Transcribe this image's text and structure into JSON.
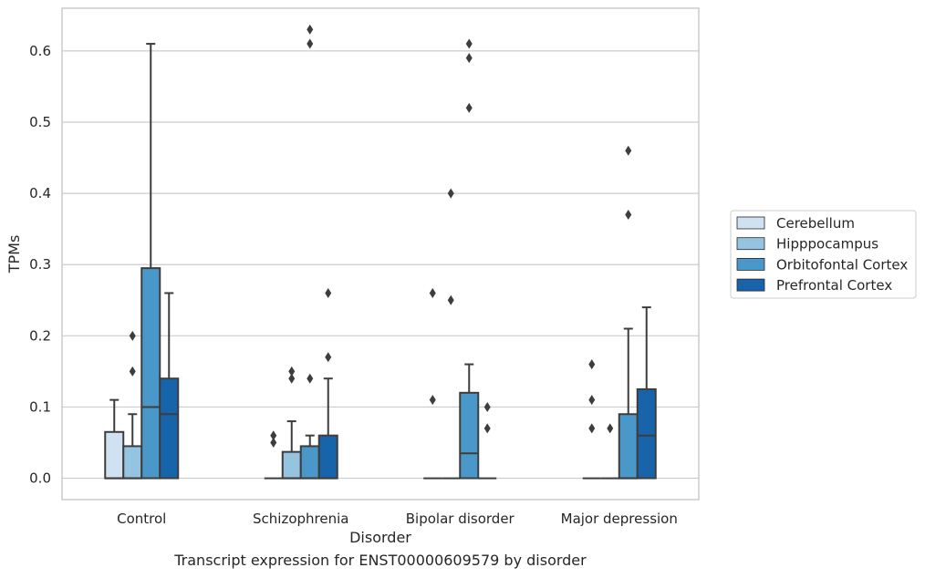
{
  "chart_data": {
    "type": "box",
    "xlabel": "Disorder",
    "ylabel": "TPMs",
    "ylim": [
      -0.03,
      0.66
    ],
    "yticks": [
      "0.0",
      "0.1",
      "0.2",
      "0.3",
      "0.4",
      "0.5",
      "0.6"
    ],
    "grid": "horizontal",
    "legend_position": "right",
    "categories": [
      "Control",
      "Schizophrenia",
      "Bipolar disorder",
      "Major depression"
    ],
    "series": [
      {
        "name": "Cerebellum",
        "color": "#d0e1f2",
        "boxes": [
          {
            "category": "Control",
            "q1": 0,
            "median": 0,
            "q3": 0.065,
            "whisker_low": 0,
            "whisker_high": 0.11,
            "outliers": []
          },
          {
            "category": "Schizophrenia",
            "q1": 0,
            "median": 0,
            "q3": 0,
            "whisker_low": 0,
            "whisker_high": 0,
            "outliers": [
              0.05,
              0.06
            ]
          },
          {
            "category": "Bipolar disorder",
            "q1": 0,
            "median": 0,
            "q3": 0,
            "whisker_low": 0,
            "whisker_high": 0,
            "outliers": [
              0.11,
              0.26
            ]
          },
          {
            "category": "Major depression",
            "q1": 0,
            "median": 0,
            "q3": 0,
            "whisker_low": 0,
            "whisker_high": 0,
            "outliers": [
              0.07,
              0.11,
              0.16
            ]
          }
        ]
      },
      {
        "name": "Hipppocampus",
        "color": "#94c4df",
        "boxes": [
          {
            "category": "Control",
            "q1": 0,
            "median": 0,
            "q3": 0.045,
            "whisker_low": 0,
            "whisker_high": 0.09,
            "outliers": [
              0.15,
              0.2
            ]
          },
          {
            "category": "Schizophrenia",
            "q1": 0,
            "median": 0,
            "q3": 0.037,
            "whisker_low": 0,
            "whisker_high": 0.08,
            "outliers": [
              0.14,
              0.15
            ]
          },
          {
            "category": "Bipolar disorder",
            "q1": 0,
            "median": 0,
            "q3": 0,
            "whisker_low": 0,
            "whisker_high": 0,
            "outliers": [
              0.25,
              0.4
            ]
          },
          {
            "category": "Major depression",
            "q1": 0,
            "median": 0,
            "q3": 0,
            "whisker_low": 0,
            "whisker_high": 0,
            "outliers": [
              0.07
            ]
          }
        ]
      },
      {
        "name": "Orbitofontal Cortex",
        "color": "#4a98c9",
        "boxes": [
          {
            "category": "Control",
            "q1": 0,
            "median": 0.1,
            "q3": 0.295,
            "whisker_low": 0,
            "whisker_high": 0.61,
            "outliers": []
          },
          {
            "category": "Schizophrenia",
            "q1": 0,
            "median": 0,
            "q3": 0.045,
            "whisker_low": 0,
            "whisker_high": 0.06,
            "outliers": [
              0.14,
              0.61,
              0.63
            ]
          },
          {
            "category": "Bipolar disorder",
            "q1": 0,
            "median": 0.035,
            "q3": 0.12,
            "whisker_low": 0,
            "whisker_high": 0.16,
            "outliers": [
              0.52,
              0.59,
              0.61
            ]
          },
          {
            "category": "Major depression",
            "q1": 0,
            "median": 0,
            "q3": 0.09,
            "whisker_low": 0,
            "whisker_high": 0.21,
            "outliers": [
              0.37,
              0.46
            ]
          }
        ]
      },
      {
        "name": "Prefrontal Cortex",
        "color": "#1764ab",
        "boxes": [
          {
            "category": "Control",
            "q1": 0,
            "median": 0.09,
            "q3": 0.14,
            "whisker_low": 0,
            "whisker_high": 0.26,
            "outliers": []
          },
          {
            "category": "Schizophrenia",
            "q1": 0,
            "median": 0,
            "q3": 0.06,
            "whisker_low": 0,
            "whisker_high": 0.14,
            "outliers": [
              0.17,
              0.26
            ]
          },
          {
            "category": "Bipolar disorder",
            "q1": 0,
            "median": 0,
            "q3": 0,
            "whisker_low": 0,
            "whisker_high": 0,
            "outliers": [
              0.07,
              0.1
            ]
          },
          {
            "category": "Major depression",
            "q1": 0,
            "median": 0.06,
            "q3": 0.125,
            "whisker_low": 0,
            "whisker_high": 0.24,
            "outliers": []
          }
        ]
      }
    ]
  },
  "caption": "Transcript expression for ENST00000609579 by disorder"
}
